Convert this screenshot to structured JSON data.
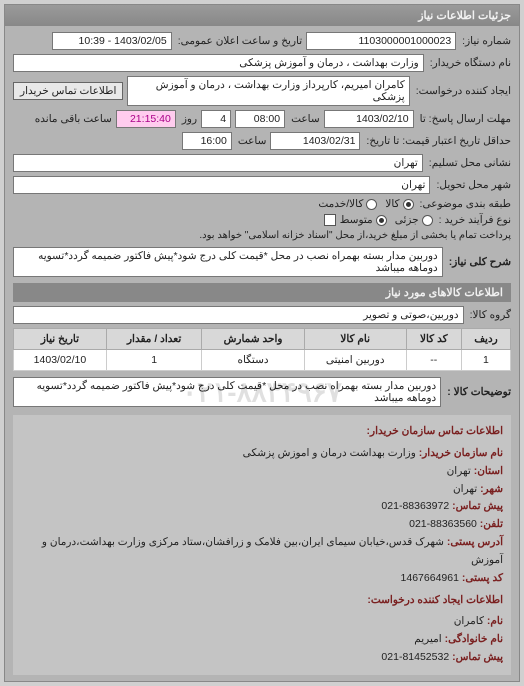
{
  "panel_title": "جزئیات اطلاعات نیاز",
  "need": {
    "req_no_label": "شماره نیاز:",
    "req_no": "1103000001000023",
    "pub_dt_label": "تاریخ و ساعت اعلان عمومی:",
    "pub_dt": "1403/02/05 - 10:39",
    "buyer_org_label": "نام دستگاه خریدار:",
    "buyer_org": "وزارت بهداشت ، درمان و آموزش پزشکی",
    "creator_label": "ایجاد کننده درخواست:",
    "creator": "کامران امیریم، کارپرداز وزارت بهداشت ، درمان و آموزش پزشکی",
    "contact_btn": "اطلاعات تماس خریدار",
    "resp_deadline_label": "مهلت ارسال پاسخ: تا",
    "resp_deadline_date": "1403/02/10",
    "resp_deadline_time_lbl": "ساعت",
    "resp_deadline_time": "08:00",
    "days_lbl": "روز",
    "days_left": "4",
    "left_time": "21:15:40",
    "left_suffix": "ساعت باقی مانده",
    "validity_label": "حداقل تاریخ اعتبار قیمت: تا تاریخ:",
    "validity_date": "1403/02/31",
    "validity_time_lbl": "ساعت",
    "validity_time": "16:00",
    "address_label": "نشانی محل تسلیم:",
    "address": "تهران",
    "city_label": "شهر محل تحویل:",
    "city": "تهران",
    "class_label": "طبقه بندی موضوعی:",
    "class_opts": {
      "goods": "کالا ⦿",
      "service": "کالا/خدمت"
    },
    "class_selected": "goods",
    "radio_goods": "کالا",
    "radio_service": "کالا/خدمت",
    "purchase_type_label": "نوع فرآیند خرید :",
    "radio_minor": "جزئی",
    "radio_medium": "متوسط",
    "pay_note": "پرداخت تمام یا بخشی از مبلغ خرید،از محل \"اسناد خزانه اسلامی\" خواهد بود.",
    "desc_label": "شرح کلی نیاز:",
    "desc": "دوربین مدار بسته بهمراه نصب در محل *قیمت کلی درج شود*پیش فاکتور ضمیمه گردد*تسویه دوماهه میباشد"
  },
  "goods_section_title": "اطلاعات کالاهای مورد نیاز",
  "goods_group_label": "گروه کالا:",
  "goods_group": "دوربین،صوتی و تصویر",
  "table": {
    "headers": [
      "ردیف",
      "کد کالا",
      "نام کالا",
      "واحد شمارش",
      "تعداد / مقدار",
      "تاریخ نیاز"
    ],
    "rows": [
      [
        "1",
        "--",
        "دوربین امنیتی",
        "دستگاه",
        "1",
        "1403/02/10"
      ]
    ]
  },
  "remarks_label": "توضیحات کالا :",
  "remarks": "دوربین مدار بسته بهمراه نصب در محل *قیمت کلی درج شود*پیش فاکتور ضمیمه گردد*تسویه دوماهه میباشد",
  "watermark": "۰۲۱-۸۸۳۴۹۶۷",
  "contact": {
    "title": "اطلاعات تماس سازمان خریدار:",
    "org_lbl": "نام سازمان خریدار:",
    "org": "وزارت بهداشت درمان و اموزش پزشکی",
    "prov_lbl": "استان:",
    "prov": "تهران",
    "city_lbl": "شهر:",
    "city": "تهران",
    "tel_lbl": "پیش تماس:",
    "tel": "88363972-021",
    "fax_lbl": "تلفن:",
    "fax": "88363560-021",
    "addr_lbl": "آدرس پستی:",
    "addr": "شهرک قدس،خیابان سیمای ایران،بین فلامک و زرافشان،ستاد مرکزی وزارت بهداشت،درمان و آموزش",
    "post_lbl": "کد پستی:",
    "post": "1467664961",
    "ctitle": "اطلاعات ایجاد کننده درخواست:",
    "fname_lbl": "نام:",
    "fname": "کامران",
    "lname_lbl": "نام خانوادگی:",
    "lname": "امیریم",
    "cphone_lbl": "پیش تماس:",
    "cphone": "81452532-021"
  }
}
